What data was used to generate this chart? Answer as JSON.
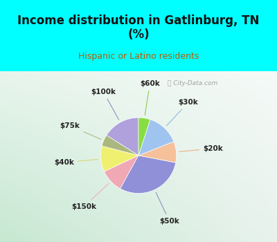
{
  "title": "Income distribution in Gatlinburg, TN\n(%)",
  "subtitle": "Hispanic or Latino residents",
  "title_color": "#111111",
  "subtitle_color": "#b85c00",
  "bg_cyan": "#00ffff",
  "bg_chart_tl": "#e8f5ee",
  "bg_chart_tr": "#f5f5f5",
  "bg_chart_bl": "#c8e8d0",
  "labels": [
    "$100k",
    "$75k",
    "$40k",
    "$150k",
    "$50k",
    "$20k",
    "$30k",
    "$60k"
  ],
  "sizes": [
    16,
    5,
    11,
    10,
    30,
    9,
    14,
    5
  ],
  "colors": [
    "#b0a0dc",
    "#aab880",
    "#f0f070",
    "#f0a8b4",
    "#9090d8",
    "#f5c09a",
    "#a0c4f0",
    "#88dd44"
  ],
  "startangle": 90,
  "line_colors": [
    "#9090b8",
    "#aabb88",
    "#d8d870",
    "#f0b0b8",
    "#9090c0",
    "#f0b080",
    "#90b8e0",
    "#88cc44"
  ],
  "watermark": "City-Data.com"
}
